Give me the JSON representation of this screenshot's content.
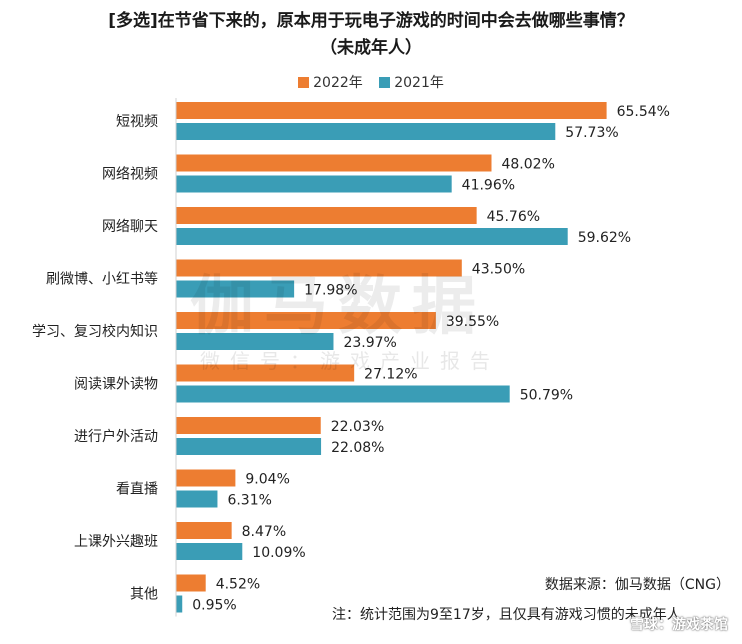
{
  "title_line1": "[多选]在节省下来的，原本用于玩电子游戏的时间中会去做哪些事情？",
  "title_line2": "（未成年人）",
  "watermark_main": "伽马数据",
  "watermark_sub": "微信号：游戏产业报告",
  "source": "数据来源：伽马数据（CNG）",
  "note": "注：统计范围为9至17岁，且仅具有游戏习惯的未成年人",
  "brand": "雪球：游戏茶馆",
  "colors": {
    "s2022": "#ED7D31",
    "s2021": "#3A9DB6"
  },
  "chart_data": {
    "type": "bar",
    "orientation": "horizontal",
    "categories": [
      "短视频",
      "网络视频",
      "网络聊天",
      "刷微博、小红书等",
      "学习、复习校内知识",
      "阅读课外读物",
      "进行户外活动",
      "看直播",
      "上课外兴趣班",
      "其他"
    ],
    "series": [
      {
        "name": "2022年",
        "values": [
          65.54,
          48.02,
          45.76,
          43.5,
          39.55,
          27.12,
          22.03,
          9.04,
          8.47,
          4.52
        ],
        "labels": [
          "65.54%",
          "48.02%",
          "45.76%",
          "43.50%",
          "39.55%",
          "27.12%",
          "22.03%",
          "9.04%",
          "8.47%",
          "4.52%"
        ]
      },
      {
        "name": "2021年",
        "values": [
          57.73,
          41.96,
          59.62,
          17.98,
          23.97,
          50.79,
          22.08,
          6.31,
          10.09,
          0.95
        ],
        "labels": [
          "57.73%",
          "41.96%",
          "59.62%",
          "17.98%",
          "23.97%",
          "50.79%",
          "22.08%",
          "6.31%",
          "10.09%",
          "0.95%"
        ]
      }
    ],
    "legend": "top",
    "grid": false
  }
}
